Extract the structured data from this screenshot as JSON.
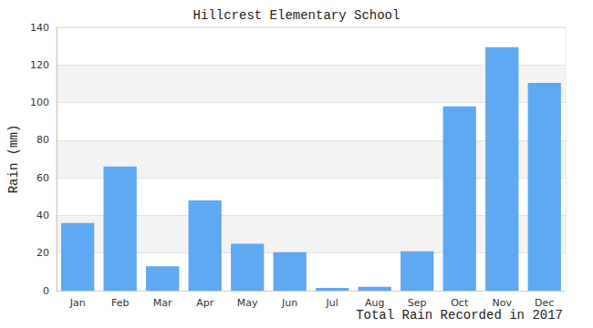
{
  "chart_data": {
    "type": "bar",
    "title": "Hillcrest Elementary School",
    "x_label": "Total Rain Recorded in 2017",
    "y_label": "Rain (mm)",
    "categories": [
      "Jan",
      "Feb",
      "Mar",
      "Apr",
      "May",
      "Jun",
      "Jul",
      "Aug",
      "Sep",
      "Oct",
      "Nov",
      "Dec"
    ],
    "values": [
      36,
      66,
      13,
      48,
      25,
      20.5,
      1.5,
      2,
      21,
      98,
      129.5,
      110.5
    ],
    "color": "#5fa8f2",
    "ylim": [
      0,
      140
    ],
    "yticks": [
      0,
      20,
      40,
      60,
      80,
      100,
      120,
      140
    ],
    "grid": true
  }
}
